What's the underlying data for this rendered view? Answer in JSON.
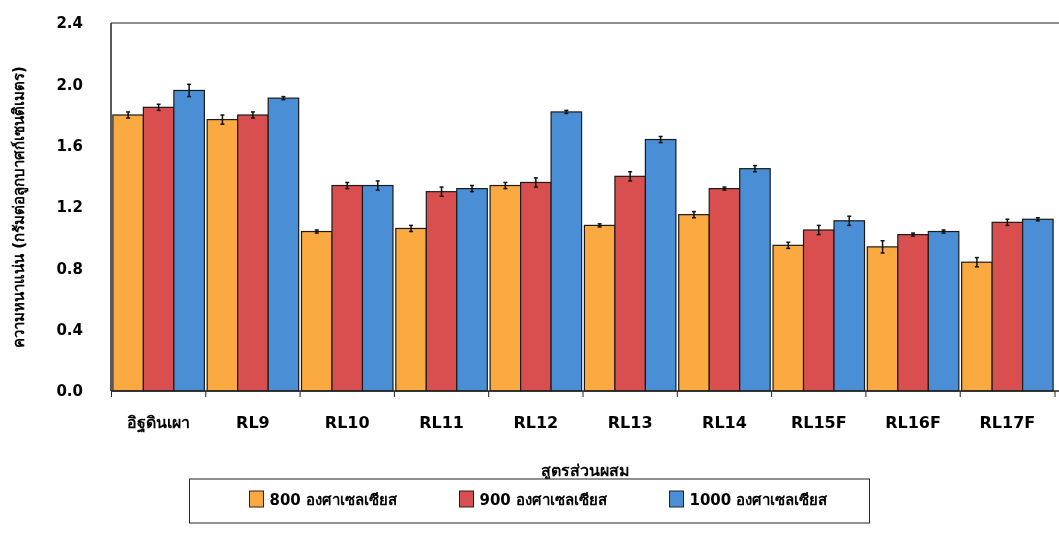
{
  "chart_data": {
    "type": "bar",
    "xlabel": "สูตรส่วนผสม",
    "ylabel": "ความหนาแน่น (กรัมต่อลูกบาศก์เซนติเมตร)",
    "categories": [
      "อิฐดินเผา",
      "RL9",
      "RL10",
      "RL11",
      "RL12",
      "RL13",
      "RL14",
      "RL15F",
      "RL16F",
      "RL17F"
    ],
    "series": [
      {
        "name": "800 องศาเซลเซียส",
        "color": "#fbaa42",
        "values": [
          1.8,
          1.77,
          1.04,
          1.06,
          1.34,
          1.08,
          1.15,
          0.95,
          0.94,
          0.84
        ],
        "errors": [
          0.02,
          0.03,
          0.01,
          0.02,
          0.02,
          0.01,
          0.02,
          0.02,
          0.04,
          0.03
        ]
      },
      {
        "name": "900 องศาเซลเซียส",
        "color": "#d94f4f",
        "values": [
          1.85,
          1.8,
          1.34,
          1.3,
          1.36,
          1.4,
          1.32,
          1.05,
          1.02,
          1.1
        ],
        "errors": [
          0.02,
          0.02,
          0.02,
          0.03,
          0.03,
          0.03,
          0.01,
          0.03,
          0.01,
          0.02
        ]
      },
      {
        "name": "1000 องศาเซลเซียส",
        "color": "#4a8fd6",
        "values": [
          1.96,
          1.91,
          1.34,
          1.32,
          1.82,
          1.64,
          1.45,
          1.11,
          1.04,
          1.12
        ],
        "errors": [
          0.04,
          0.01,
          0.03,
          0.02,
          0.01,
          0.02,
          0.02,
          0.03,
          0.01,
          0.01
        ]
      }
    ],
    "ylim": [
      0,
      2.4
    ],
    "yticks": [
      {
        "value": 0,
        "label": "0.0"
      },
      {
        "value": 0.4,
        "label": "0.4"
      },
      {
        "value": 0.8,
        "label": "0.8"
      },
      {
        "value": 1.2,
        "label": "1.2"
      },
      {
        "value": 1.6,
        "label": "1.6"
      },
      {
        "value": 2.0,
        "label": "2.0"
      },
      {
        "value": 2.4,
        "label": "2.4"
      }
    ],
    "legend": "bottom"
  }
}
